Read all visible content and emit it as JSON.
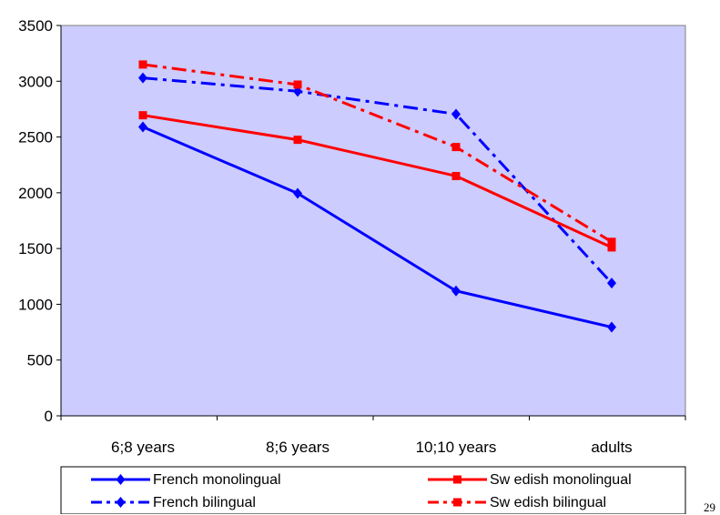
{
  "page_number": "29",
  "chart_data": {
    "type": "line",
    "title": "",
    "xlabel": "",
    "ylabel": "",
    "categories": [
      "6;8 years",
      "8;6 years",
      "10;10 years",
      "adults"
    ],
    "ylim": [
      0,
      3500
    ],
    "yticks": [
      0,
      500,
      1000,
      1500,
      2000,
      2500,
      3000,
      3500
    ],
    "grid": false,
    "plot_background": "#CCCCFF",
    "legend_position": "bottom",
    "series": [
      {
        "name": "French monolingual",
        "values": [
          2590,
          1995,
          1120,
          795
        ],
        "color": "#0000FF",
        "dash": "solid",
        "marker": "diamond"
      },
      {
        "name": "French bilingual",
        "values": [
          3030,
          2910,
          2705,
          1190
        ],
        "color": "#0000FF",
        "dash": "dashdot",
        "marker": "diamond"
      },
      {
        "name": "Sw edish monolingual",
        "values": [
          2695,
          2475,
          2150,
          1510
        ],
        "color": "#FF0000",
        "dash": "solid",
        "marker": "square"
      },
      {
        "name": "Sw edish bilingual",
        "values": [
          3150,
          2970,
          2410,
          1560
        ],
        "color": "#FF0000",
        "dash": "dashdot",
        "marker": "square"
      }
    ]
  }
}
